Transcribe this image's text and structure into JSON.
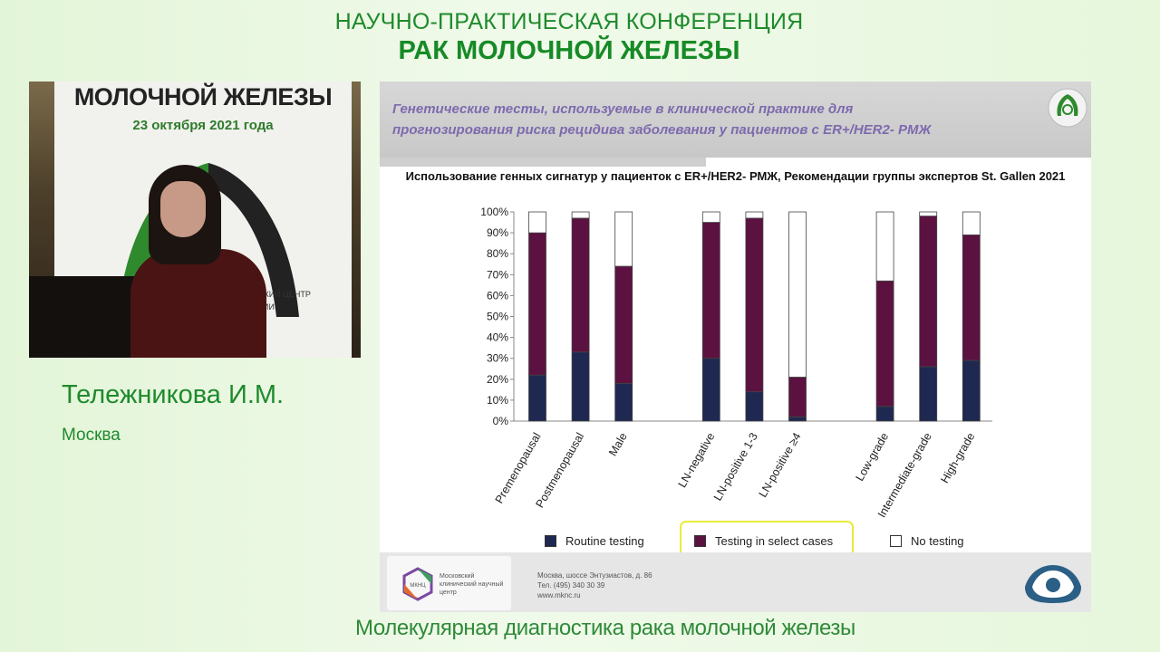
{
  "conference": {
    "line1": "НАУЧНО-ПРАКТИЧЕСКАЯ КОНФЕРЕНЦИЯ",
    "line2": "РАК МОЛОЧНОЙ ЖЕЛЕЗЫ"
  },
  "video": {
    "banner_line1": "МОЛОЧНОЙ ЖЕЛЕЗЫ",
    "banner_line2": "23 октября 2021 года",
    "banner_line3": "СКИЙ ЦЕНТР",
    "banner_line4": "ГИИ"
  },
  "speaker": {
    "name": "Тележникова И.М.",
    "city": "Москва"
  },
  "slide": {
    "title_line1": "Генетические тесты, используемые в клинической практике для",
    "title_line2": "прогнозирования риска рецидива заболевания у пациентов с ER+/HER2- РМЖ",
    "footer": {
      "org_name": "Московский клинический научный центр",
      "logo_abbr": "МКНЦ",
      "address": "Москва, шоссе Энтузиастов, д. 86",
      "phone": "Тел. (495) 340 30 39",
      "site": "www.mknc.ru"
    }
  },
  "chart_data": {
    "type": "bar",
    "stacked": true,
    "title": "Использование генных сигнатур у пациенток с ER+/HER2- РМЖ, Рекомендации группы экспертов St. Gallen 2021",
    "categories": [
      "Premenopausal",
      "Postmenopausal",
      "Male",
      "LN-negative",
      "LN-positive 1-3",
      "LN-positive ≥4",
      "Low-grade",
      "Intermediate-grade",
      "High-grade"
    ],
    "groups": [
      [
        0,
        1,
        2
      ],
      [
        3,
        4,
        5
      ],
      [
        6,
        7,
        8
      ]
    ],
    "series": [
      {
        "name": "Routine testing",
        "color": "#1e2850",
        "values": [
          22,
          33,
          18,
          30,
          14,
          2,
          7,
          26,
          29
        ]
      },
      {
        "name": "Testing in select cases",
        "color": "#5c1240",
        "values": [
          68,
          64,
          56,
          65,
          83,
          19,
          60,
          72,
          60
        ]
      },
      {
        "name": "No testing",
        "color": "#ffffff",
        "values": [
          10,
          3,
          26,
          5,
          3,
          79,
          33,
          2,
          11
        ]
      }
    ],
    "y_ticks": [
      "0%",
      "10%",
      "20%",
      "30%",
      "40%",
      "50%",
      "60%",
      "70%",
      "80%",
      "90%",
      "100%"
    ],
    "ylim": [
      0,
      100
    ],
    "legend": "bottom",
    "grid": false
  },
  "caption": "Молекулярная диагностика рака молочной железы"
}
